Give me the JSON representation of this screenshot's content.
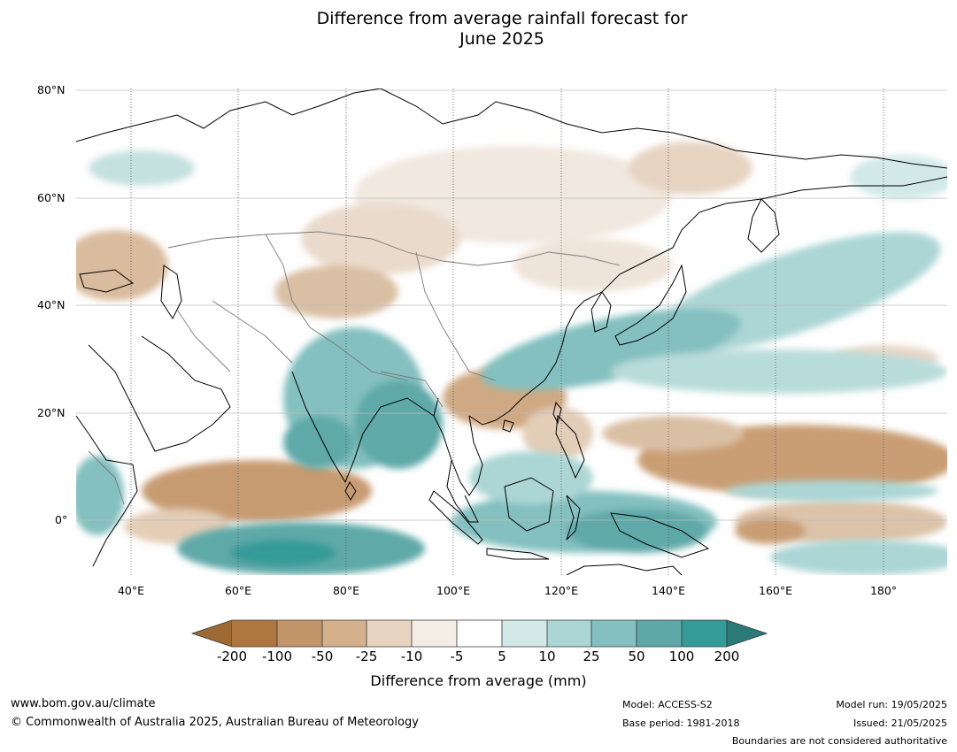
{
  "title_line1": "Difference from average rainfall forecast for",
  "title_line2": "June 2025",
  "lat_labels": [
    "80°N",
    "60°N",
    "40°N",
    "20°N",
    "0°"
  ],
  "lon_labels": [
    "40°E",
    "60°E",
    "80°E",
    "100°E",
    "120°E",
    "140°E",
    "160°E",
    "180°"
  ],
  "colorbar": {
    "title": "Difference from average (mm)",
    "labels": [
      "-200",
      "-100",
      "-50",
      "-25",
      "-10",
      "-5",
      "5",
      "10",
      "25",
      "50",
      "100",
      "200"
    ],
    "colors": [
      "#9c6a32",
      "#ae7640",
      "#c2956a",
      "#d4b08d",
      "#e6d4c1",
      "#f3ede6",
      "#ffffff",
      "#d2e9e8",
      "#acd6d5",
      "#83c0bf",
      "#5ea9a8",
      "#349b98",
      "#2a7a78"
    ]
  },
  "footer": {
    "website": "www.bom.gov.au/climate",
    "copyright": "© Commonwealth of Australia 2025, Australian Bureau of Meteorology",
    "model": "Model: ACCESS-S2",
    "base_period": "Base period: 1981-2018",
    "model_run": "Model run: 19/05/2025",
    "issued": "Issued: 21/05/2025",
    "disclaimer": "Boundaries are not considered authoritative"
  },
  "map": {
    "extent": {
      "lon_min": 30,
      "lon_max": 192,
      "lat_min": -10,
      "lat_max": 80
    },
    "gridlines": "on"
  }
}
